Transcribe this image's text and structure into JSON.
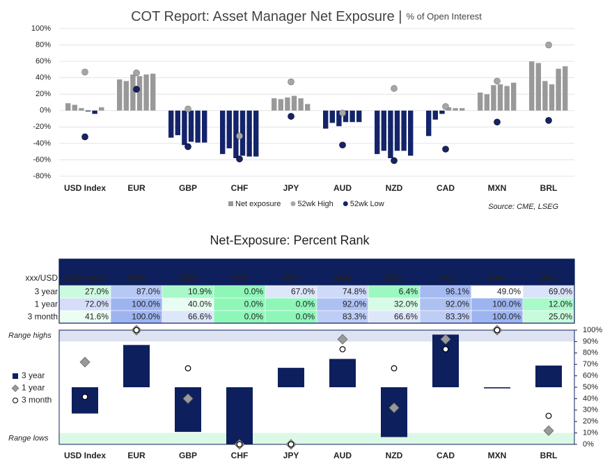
{
  "chart_data": [
    {
      "type": "grouped-bar",
      "title": "COT Report: Asset Manager Net Exposure |",
      "subtitle": "% of Open Interest",
      "source": "Source: CME, LSEG",
      "categories": [
        "USD Index",
        "EUR",
        "GBP",
        "CHF",
        "JPY",
        "AUD",
        "NZD",
        "CAD",
        "MXN",
        "BRL"
      ],
      "series": [
        {
          "name": "Net exposure",
          "color": "#999999",
          "negative_color": "#14246a",
          "values": [
            [
              9,
              7,
              3,
              -1,
              -4,
              4
            ],
            [
              38,
              36,
              44,
              42,
              44,
              45
            ],
            [
              -33,
              -30,
              -42,
              -38,
              -39,
              -39
            ],
            [
              -53,
              -46,
              -58,
              -55,
              -56,
              -56
            ],
            [
              15,
              14,
              16,
              18,
              15,
              8
            ],
            [
              -22,
              -15,
              -19,
              -14,
              -14,
              -14
            ],
            [
              -53,
              -49,
              -58,
              -49,
              -49,
              -55
            ],
            [
              -31,
              -11,
              -4,
              4,
              3,
              3
            ],
            [
              22,
              20,
              31,
              32,
              30,
              34
            ],
            [
              60,
              58,
              36,
              32,
              51,
              54
            ]
          ]
        },
        {
          "name": "52wk High",
          "color": "#a6a6a6",
          "values": [
            47,
            46,
            2,
            -31,
            35,
            -3,
            27,
            5,
            36,
            80
          ]
        },
        {
          "name": "52wk Low",
          "color": "#14246a",
          "values": [
            -32,
            26,
            -44,
            -59,
            -7,
            -42,
            -61,
            -47,
            -14,
            -12
          ]
        }
      ],
      "ylim": [
        -80,
        100
      ],
      "yticks": [
        {
          "value": -80,
          "label": "-80%"
        },
        {
          "value": -60,
          "label": "-60%"
        },
        {
          "value": -40,
          "label": "-40%"
        },
        {
          "value": -20,
          "label": "-20%"
        },
        {
          "value": 0,
          "label": "0%"
        },
        {
          "value": 20,
          "label": "20%"
        },
        {
          "value": 40,
          "label": "40%"
        },
        {
          "value": 60,
          "label": "60%"
        },
        {
          "value": 80,
          "label": "80%"
        },
        {
          "value": 100,
          "label": "100%"
        }
      ],
      "grid": true,
      "legend": "bottom"
    },
    {
      "type": "rank",
      "title": "Net-Exposure: Percent Rank",
      "row_header": "xxx/USD",
      "categories": [
        "USD Index",
        "EUR",
        "GBP",
        "CHF",
        "JPY",
        "AUD",
        "NZD",
        "CAD",
        "MXN",
        "BRL"
      ],
      "series": [
        {
          "name": "3 year",
          "color": "#0d1f5c",
          "values": [
            27.0,
            87.0,
            10.9,
            0.0,
            67.0,
            74.8,
            6.4,
            96.1,
            49.0,
            69.0
          ],
          "value_labels": [
            "27.0%",
            "87.0%",
            "10.9%",
            "0.0%",
            "67.0%",
            "74.8%",
            "6.4%",
            "96.1%",
            "49.0%",
            "69.0%"
          ]
        },
        {
          "name": "1 year",
          "color": "#999999",
          "values": [
            72.0,
            100.0,
            40.0,
            0.0,
            0.0,
            92.0,
            32.0,
            92.0,
            100.0,
            12.0
          ],
          "value_labels": [
            "72.0%",
            "100.0%",
            "40.0%",
            "0.0%",
            "0.0%",
            "92.0%",
            "32.0%",
            "92.0%",
            "100.0%",
            "12.0%"
          ]
        },
        {
          "name": "3 month",
          "color": "#ffffff",
          "values": [
            41.6,
            100.0,
            66.6,
            0.0,
            0.0,
            83.3,
            66.6,
            83.3,
            100.0,
            25.0
          ],
          "value_labels": [
            "41.6%",
            "100.0%",
            "66.6%",
            "0.0%",
            "0.0%",
            "83.3%",
            "66.6%",
            "83.3%",
            "100.0%",
            "25.0%"
          ]
        }
      ],
      "ylim": [
        0,
        100
      ],
      "yticks": [
        {
          "value": 0,
          "label": "0%"
        },
        {
          "value": 10,
          "label": "10%"
        },
        {
          "value": 20,
          "label": "20%"
        },
        {
          "value": 30,
          "label": "30%"
        },
        {
          "value": 40,
          "label": "40%"
        },
        {
          "value": 50,
          "label": "50%"
        },
        {
          "value": 60,
          "label": "60%"
        },
        {
          "value": 70,
          "label": "70%"
        },
        {
          "value": 80,
          "label": "80%"
        },
        {
          "value": 90,
          "label": "90%"
        },
        {
          "value": 100,
          "label": "100%"
        }
      ],
      "bands": [
        {
          "label": "Range highs",
          "range": [
            90,
            100
          ],
          "color": "#dde3f1",
          "text_color": "#8096c0"
        },
        {
          "label": "Range lows",
          "range": [
            0,
            10
          ],
          "color": "#dcf8e6",
          "text_color": "#5cd68a"
        }
      ],
      "legend": "left"
    }
  ]
}
